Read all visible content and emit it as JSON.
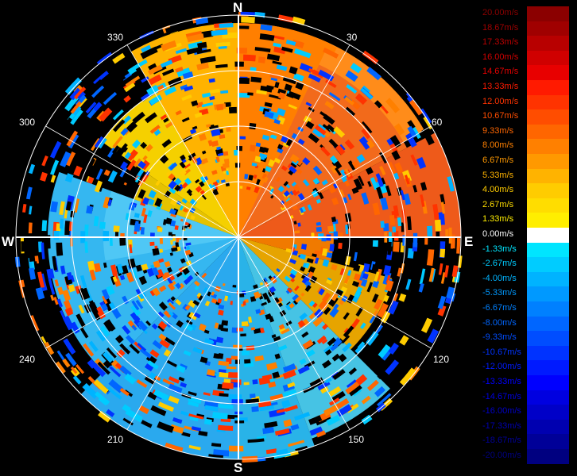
{
  "compass": {
    "north": "N",
    "south": "S",
    "east": "E",
    "west": "W"
  },
  "azimuth_labels": [
    "30",
    "60",
    "120",
    "150",
    "210",
    "240",
    "300",
    "330"
  ],
  "legend": [
    {
      "label": "20.00m/s",
      "color": "#8b0000"
    },
    {
      "label": "18.67m/s",
      "color": "#a00000"
    },
    {
      "label": "17.33m/s",
      "color": "#b80000"
    },
    {
      "label": "16.00m/s",
      "color": "#d00000"
    },
    {
      "label": "14.67m/s",
      "color": "#e80000"
    },
    {
      "label": "13.33m/s",
      "color": "#ff1a00"
    },
    {
      "label": "12.00m/s",
      "color": "#ff3300"
    },
    {
      "label": "10.67m/s",
      "color": "#ff4d00"
    },
    {
      "label": "9.33m/s",
      "color": "#ff6600"
    },
    {
      "label": "8.00m/s",
      "color": "#ff8000"
    },
    {
      "label": "6.67m/s",
      "color": "#ff9900"
    },
    {
      "label": "5.33m/s",
      "color": "#ffb300"
    },
    {
      "label": "4.00m/s",
      "color": "#ffcc00"
    },
    {
      "label": "2.67m/s",
      "color": "#ffdd00"
    },
    {
      "label": "1.33m/s",
      "color": "#ffee00"
    },
    {
      "label": "0.00m/s",
      "color": "#ffffff"
    },
    {
      "label": "-1.33m/s",
      "color": "#00e5ff"
    },
    {
      "label": "-2.67m/s",
      "color": "#00ccff"
    },
    {
      "label": "-4.00m/s",
      "color": "#00b3ff"
    },
    {
      "label": "-5.33m/s",
      "color": "#0099ff"
    },
    {
      "label": "-6.67m/s",
      "color": "#0080ff"
    },
    {
      "label": "-8.00m/s",
      "color": "#0066ff"
    },
    {
      "label": "-9.33m/s",
      "color": "#004dff"
    },
    {
      "label": "-10.67m/s",
      "color": "#0033ff"
    },
    {
      "label": "-12.00m/s",
      "color": "#001aff"
    },
    {
      "label": "-13.33m/s",
      "color": "#0000ff"
    },
    {
      "label": "-14.67m/s",
      "color": "#0000e0"
    },
    {
      "label": "-16.00m/s",
      "color": "#0000c8"
    },
    {
      "label": "-17.33m/s",
      "color": "#0000b0"
    },
    {
      "label": "-18.67m/s",
      "color": "#000098"
    },
    {
      "label": "-20.00m/s",
      "color": "#000080"
    }
  ]
}
